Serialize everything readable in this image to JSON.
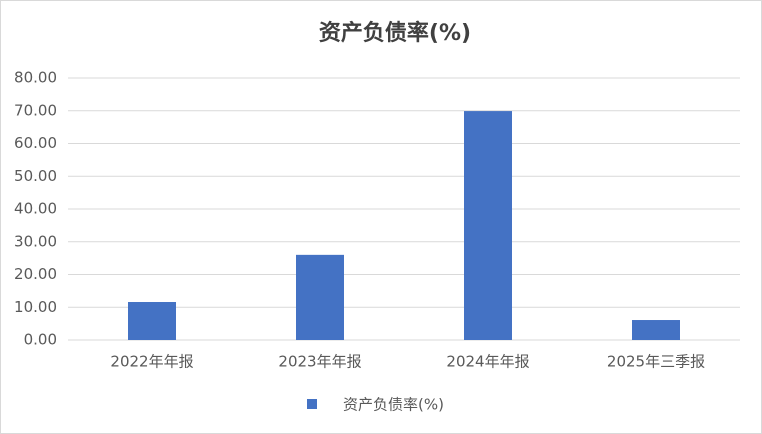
{
  "chart_data": {
    "type": "bar",
    "title": "资产负债率(%)",
    "categories": [
      "2022年年报",
      "2023年年报",
      "2024年年报",
      "2025年三季报"
    ],
    "series": [
      {
        "name": "资产负债率(%)",
        "color": "#4472c4",
        "values": [
          11.6,
          26.0,
          69.9,
          6.1
        ]
      }
    ],
    "ylim": [
      0,
      80
    ],
    "yticks": [
      {
        "value": 0,
        "label": "0.00"
      },
      {
        "value": 10,
        "label": "10.00"
      },
      {
        "value": 20,
        "label": "20.00"
      },
      {
        "value": 30,
        "label": "30.00"
      },
      {
        "value": 40,
        "label": "40.00"
      },
      {
        "value": 50,
        "label": "50.00"
      },
      {
        "value": 60,
        "label": "60.00"
      },
      {
        "value": 70,
        "label": "70.00"
      },
      {
        "value": 80,
        "label": "80.00"
      }
    ],
    "grid": true,
    "legend": "bottom"
  }
}
